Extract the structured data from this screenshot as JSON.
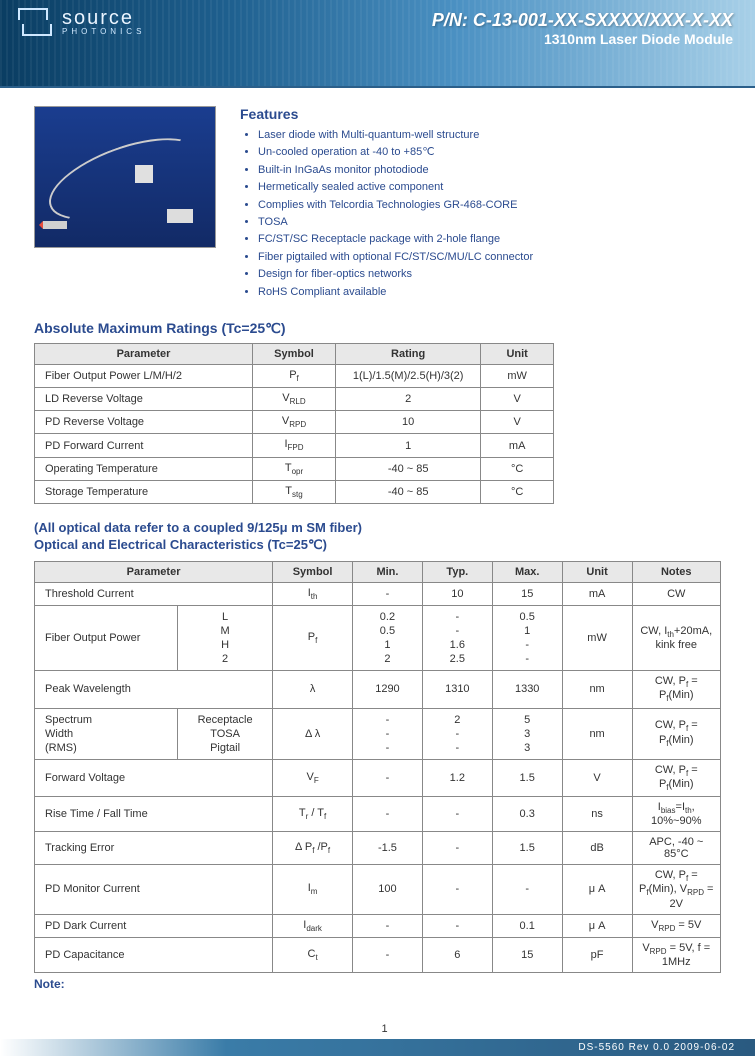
{
  "header": {
    "brand": "source",
    "tagline": "PHOTONICS",
    "part_number": "P/N: C-13-001-XX-SXXXX/XXX-X-XX",
    "subtitle": "1310nm Laser Diode Module"
  },
  "features": {
    "title": "Features",
    "items": [
      "Laser diode with Multi-quantum-well structure",
      "Un-cooled operation at -40 to +85℃",
      "Built-in InGaAs monitor photodiode",
      "Hermetically sealed active component",
      "Complies with Telcordia Technologies GR-468-CORE",
      "TOSA",
      "FC/ST/SC Receptacle package with 2-hole flange",
      "Fiber pigtailed with optional FC/ST/SC/MU/LC connector",
      "Design for fiber-optics networks",
      "RoHS Compliant available"
    ]
  },
  "abs_max": {
    "title": "Absolute Maximum Ratings (Tc=25℃)",
    "headers": [
      "Parameter",
      "Symbol",
      "Rating",
      "Unit"
    ],
    "rows": [
      {
        "param": "Fiber Output Power        L/M/H/2",
        "sym_html": "P<span class='sub'>f</span>",
        "rating": "1(L)/1.5(M)/2.5(H)/3(2)",
        "unit": "mW"
      },
      {
        "param": "LD Reverse Voltage",
        "sym_html": "V<span class='sub'>RLD</span>",
        "rating": "2",
        "unit": "V"
      },
      {
        "param": "PD Reverse Voltage",
        "sym_html": "V<span class='sub'>RPD</span>",
        "rating": "10",
        "unit": "V"
      },
      {
        "param": "PD Forward Current",
        "sym_html": "I<span class='sub'>FPD</span>",
        "rating": "1",
        "unit": "mA"
      },
      {
        "param": "Operating Temperature",
        "sym_html": "T<span class='sub'>opr</span>",
        "rating": "-40 ~ 85",
        "unit": "°C"
      },
      {
        "param": "Storage Temperature",
        "sym_html": "T<span class='sub'>stg</span>",
        "rating": "-40 ~ 85",
        "unit": "°C"
      }
    ]
  },
  "opt_elec": {
    "pre_title": "(All optical data refer to a coupled 9/125μ m SM fiber)",
    "title": "Optical and Electrical Characteristics   (Tc=25℃)",
    "headers": [
      "Parameter",
      "Symbol",
      "Min.",
      "Typ.",
      "Max.",
      "Unit",
      "Notes"
    ],
    "row_threshold": {
      "param": "Threshold Current",
      "sym_html": "I<span class='sub'>th</span>",
      "min": "-",
      "typ": "10",
      "max": "15",
      "unit": "mA",
      "notes": "CW"
    },
    "row_fop": {
      "param": "Fiber Output Power",
      "variants": [
        "L",
        "M",
        "H",
        "2"
      ],
      "sym_html": "P<span class='sub'>f</span>",
      "min": [
        "0.2",
        "0.5",
        "1",
        "2"
      ],
      "typ": [
        "-",
        "-",
        "1.6",
        "2.5"
      ],
      "max": [
        "0.5",
        "1",
        "-",
        "-"
      ],
      "unit": "mW",
      "notes_html": "CW, I<span class='sub'>th</span>+20mA, kink free"
    },
    "row_peak": {
      "param": "Peak Wavelength",
      "sym": "λ",
      "min": "1290",
      "typ": "1310",
      "max": "1330",
      "unit": "nm",
      "notes_html": "CW, P<span class='sub'>f</span> = P<span class='sub'>f</span>(Min)"
    },
    "row_spectrum": {
      "left_lines": [
        "Spectrum",
        "Width",
        "(RMS)"
      ],
      "right_lines": [
        "Receptacle",
        "TOSA",
        "Pigtail"
      ],
      "sym": "Δ λ",
      "min": [
        "-",
        "-",
        "-"
      ],
      "typ": [
        "2",
        "-",
        "-"
      ],
      "max": [
        "5",
        "3",
        "3"
      ],
      "unit": "nm",
      "notes_html": "CW, P<span class='sub'>f</span> = P<span class='sub'>f</span>(Min)"
    },
    "simple_rows": [
      {
        "param": "Forward Voltage",
        "sym_html": "V<span class='sub'>F</span>",
        "min": "-",
        "typ": "1.2",
        "max": "1.5",
        "unit": "V",
        "notes_html": "CW, P<span class='sub'>f</span> = P<span class='sub'>f</span>(Min)"
      },
      {
        "param": "Rise Time / Fall Time",
        "sym_html": "T<span class='sub'>r</span> / T<span class='sub'>f</span>",
        "min": "-",
        "typ": "-",
        "max": "0.3",
        "unit": "ns",
        "notes_html": "I<span class='sub'>bias</span>=I<span class='sub'>th</span>, 10%~90%"
      },
      {
        "param": "Tracking Error",
        "sym_html": "Δ P<span class='sub'>f</span> /P<span class='sub'>f</span>",
        "min": "-1.5",
        "typ": "-",
        "max": "1.5",
        "unit": "dB",
        "notes_html": "APC, -40 ~ 85°C"
      },
      {
        "param": "PD Monitor Current",
        "sym_html": "I<span class='sub'>m</span>",
        "min": "100",
        "typ": "-",
        "max": "-",
        "unit": "μ A",
        "notes_html": "CW, P<span class='sub'>f</span> = P<span class='sub'>f</span>(Min), V<span class='sub'>RPD</span> = 2V"
      },
      {
        "param": "PD Dark Current",
        "sym_html": "I<span class='sub'>dark</span>",
        "min": "-",
        "typ": "-",
        "max": "0.1",
        "unit": "μ A",
        "notes_html": "V<span class='sub'>RPD</span> = 5V"
      },
      {
        "param": "PD Capacitance",
        "sym_html": "C<span class='sub'>t</span>",
        "min": "-",
        "typ": "6",
        "max": "15",
        "unit": "pF",
        "notes_html": "V<span class='sub'>RPD</span> = 5V, f = 1MHz"
      }
    ],
    "note_label": "Note:"
  },
  "footer": {
    "page": "1",
    "doc": "DS-5560   Rev 0.0   2009-06-02"
  }
}
